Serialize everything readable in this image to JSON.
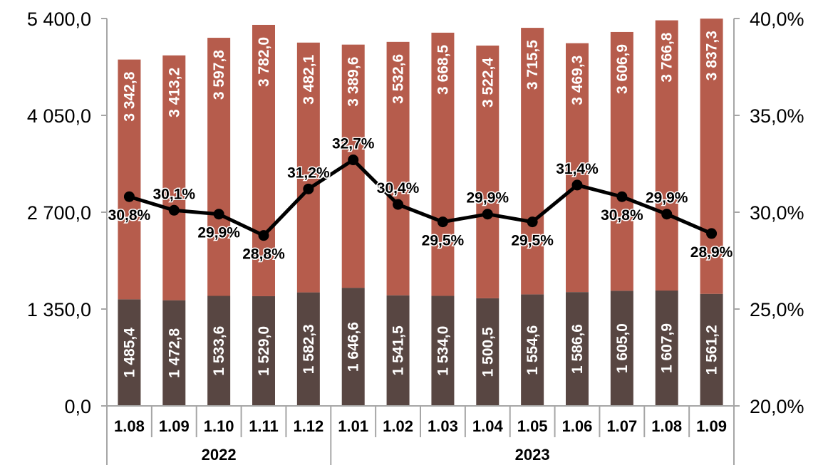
{
  "chart_data": {
    "type": "bar",
    "stacked": true,
    "categories": [
      "1.08",
      "1.09",
      "1.10",
      "1.11",
      "1.12",
      "1.01",
      "1.02",
      "1.03",
      "1.04",
      "1.05",
      "1.06",
      "1.07",
      "1.08",
      "1.09"
    ],
    "category_groups": [
      {
        "label": "2022",
        "count": 5
      },
      {
        "label": "2023",
        "count": 9
      }
    ],
    "series": [
      {
        "values": [
          1485.4,
          1472.8,
          1533.6,
          1529.0,
          1582.3,
          1646.6,
          1541.5,
          1534.0,
          1500.5,
          1554.6,
          1586.6,
          1605.0,
          1607.9,
          1561.2
        ],
        "labels": [
          "1 485,4",
          "1 472,8",
          "1 533,6",
          "1 529,0",
          "1 582,3",
          "1 646,6",
          "1 541,5",
          "1 534,0",
          "1 500,5",
          "1 554,6",
          "1 586,6",
          "1 605,0",
          "1 607,9",
          "1 561,2"
        ],
        "color": "#584642"
      },
      {
        "values": [
          3342.8,
          3413.2,
          3597.8,
          3782.0,
          3482.1,
          3389.6,
          3532.6,
          3668.5,
          3522.4,
          3715.5,
          3469.3,
          3606.9,
          3766.8,
          3837.3
        ],
        "labels": [
          "3 342,8",
          "3 413,2",
          "3 597,8",
          "3 782,0",
          "3 482,1",
          "3 389,6",
          "3 532,6",
          "3 668,5",
          "3 522,4",
          "3 715,5",
          "3 469,3",
          "3 606,9",
          "3 766,8",
          "3 837,3"
        ],
        "color": "#b65c4c"
      }
    ],
    "line_series": {
      "axis": "right",
      "values": [
        30.8,
        30.1,
        29.9,
        28.8,
        31.2,
        32.7,
        30.4,
        29.5,
        29.9,
        29.5,
        31.4,
        30.8,
        29.9,
        28.9
      ],
      "labels": [
        "30,8%",
        "30,1%",
        "29,9%",
        "28,8%",
        "31,2%",
        "32,7%",
        "30,4%",
        "29,5%",
        "29,9%",
        "29,5%",
        "31,4%",
        "30,8%",
        "29,9%",
        "28,9%"
      ],
      "label_position": [
        "below",
        "above",
        "below",
        "below",
        "above",
        "above",
        "above",
        "below",
        "above",
        "below",
        "above",
        "below",
        "above",
        "below"
      ],
      "color": "#000000"
    },
    "y_left": {
      "ylim": [
        0,
        5400
      ],
      "ticks": [
        0,
        1350,
        2700,
        4050,
        5400
      ],
      "tick_labels": [
        "0,0",
        "1 350,0",
        "2 700,0",
        "4 050,0",
        "5 400,0"
      ]
    },
    "y_right": {
      "ylim": [
        20,
        40
      ],
      "ticks": [
        20,
        25,
        30,
        35,
        40
      ],
      "tick_labels": [
        "20,0%",
        "25,0%",
        "30,0%",
        "35,0%",
        "40,0%"
      ]
    },
    "grid": false,
    "legend": "none"
  }
}
